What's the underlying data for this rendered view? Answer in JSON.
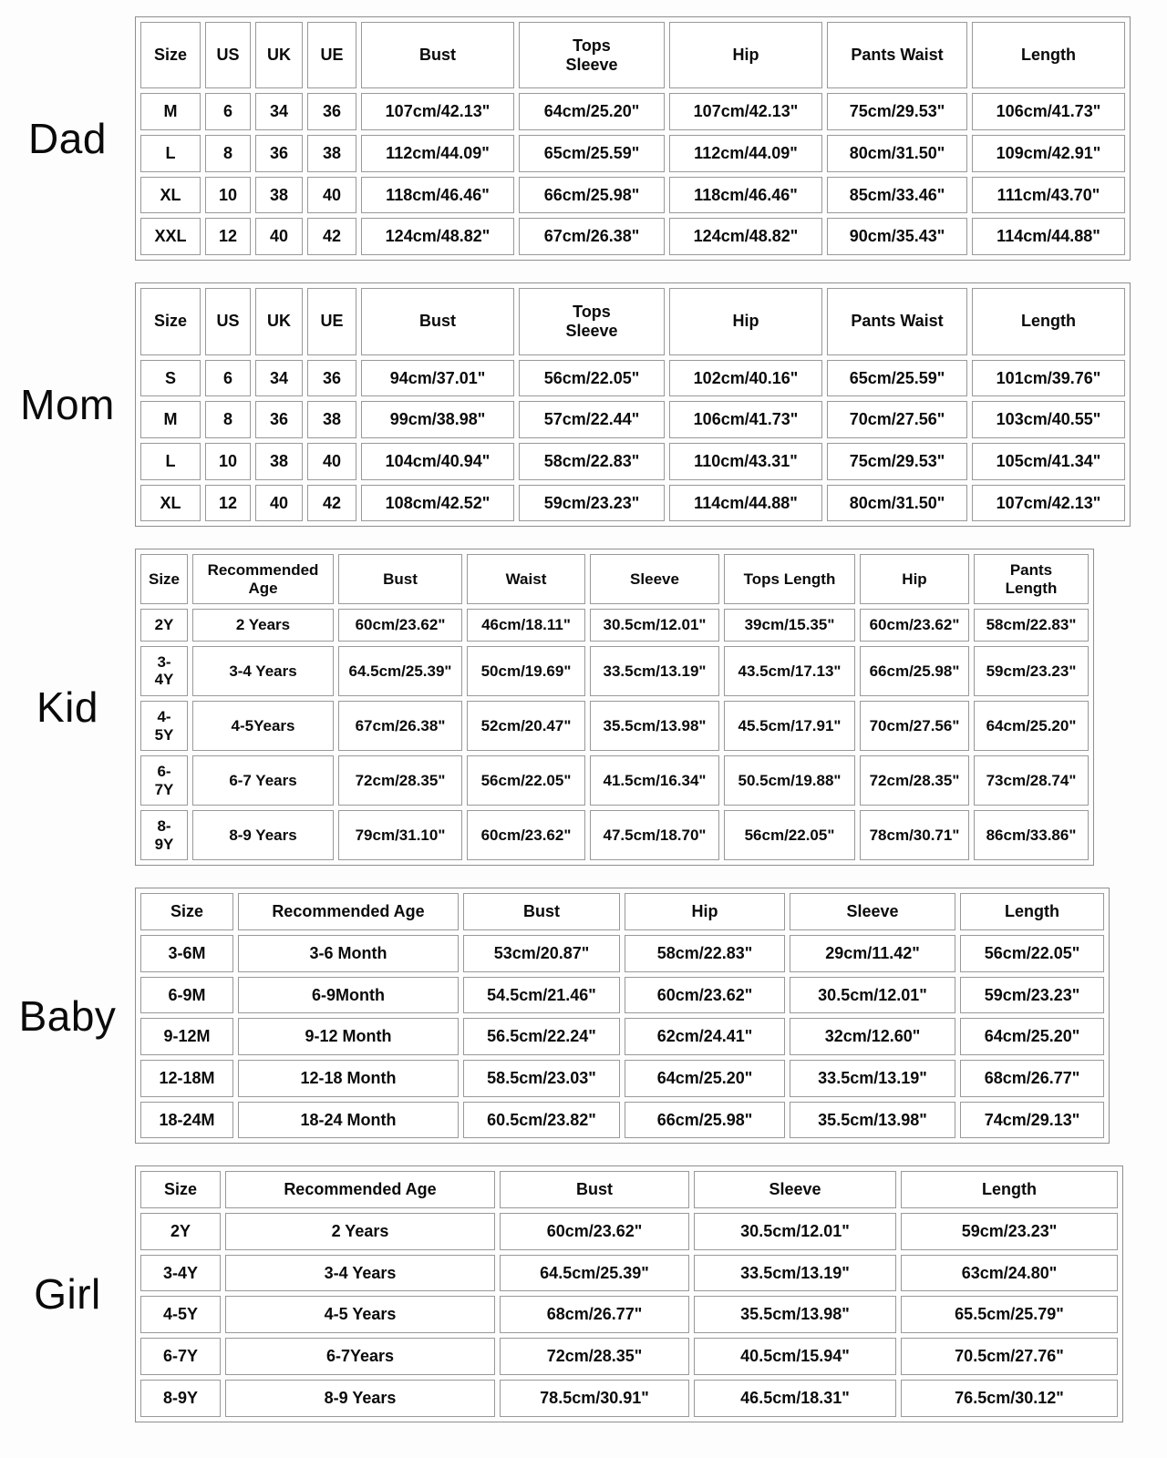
{
  "colors": {
    "page_background": "#fdfdfd",
    "cell_background": "#ffffff",
    "table_border": "#999999",
    "text": "#0a0a0a"
  },
  "sections": {
    "dad": {
      "label": "Dad",
      "table": {
        "headers": [
          "Size",
          "US",
          "UK",
          "UE",
          "Bust",
          "Tops\nSleeve",
          "Hip",
          "Pants Waist",
          "Length"
        ],
        "rows": [
          [
            "M",
            "6",
            "34",
            "36",
            "107cm/42.13\"",
            "64cm/25.20\"",
            "107cm/42.13\"",
            "75cm/29.53\"",
            "106cm/41.73\""
          ],
          [
            "L",
            "8",
            "36",
            "38",
            "112cm/44.09\"",
            "65cm/25.59\"",
            "112cm/44.09\"",
            "80cm/31.50\"",
            "109cm/42.91\""
          ],
          [
            "XL",
            "10",
            "38",
            "40",
            "118cm/46.46\"",
            "66cm/25.98\"",
            "118cm/46.46\"",
            "85cm/33.46\"",
            "111cm/43.70\""
          ],
          [
            "XXL",
            "12",
            "40",
            "42",
            "124cm/48.82\"",
            "67cm/26.38\"",
            "124cm/48.82\"",
            "90cm/35.43\"",
            "114cm/44.88\""
          ]
        ]
      }
    },
    "mom": {
      "label": "Mom",
      "table": {
        "headers": [
          "Size",
          "US",
          "UK",
          "UE",
          "Bust",
          "Tops\nSleeve",
          "Hip",
          "Pants Waist",
          "Length"
        ],
        "rows": [
          [
            "S",
            "6",
            "34",
            "36",
            "94cm/37.01\"",
            "56cm/22.05\"",
            "102cm/40.16\"",
            "65cm/25.59\"",
            "101cm/39.76\""
          ],
          [
            "M",
            "8",
            "36",
            "38",
            "99cm/38.98\"",
            "57cm/22.44\"",
            "106cm/41.73\"",
            "70cm/27.56\"",
            "103cm/40.55\""
          ],
          [
            "L",
            "10",
            "38",
            "40",
            "104cm/40.94\"",
            "58cm/22.83\"",
            "110cm/43.31\"",
            "75cm/29.53\"",
            "105cm/41.34\""
          ],
          [
            "XL",
            "12",
            "40",
            "42",
            "108cm/42.52\"",
            "59cm/23.23\"",
            "114cm/44.88\"",
            "80cm/31.50\"",
            "107cm/42.13\""
          ]
        ]
      }
    },
    "kid": {
      "label": "Kid",
      "table": {
        "headers": [
          "Size",
          "Recommended\nAge",
          "Bust",
          "Waist",
          "Sleeve",
          "Tops Length",
          "Hip",
          "Pants\nLength"
        ],
        "rows": [
          [
            "2Y",
            "2 Years",
            "60cm/23.62\"",
            "46cm/18.11\"",
            "30.5cm/12.01\"",
            "39cm/15.35\"",
            "60cm/23.62\"",
            "58cm/22.83\""
          ],
          [
            "3-\n4Y",
            "3-4 Years",
            "64.5cm/25.39\"",
            "50cm/19.69\"",
            "33.5cm/13.19\"",
            "43.5cm/17.13\"",
            "66cm/25.98\"",
            "59cm/23.23\""
          ],
          [
            "4-\n5Y",
            "4-5Years",
            "67cm/26.38\"",
            "52cm/20.47\"",
            "35.5cm/13.98\"",
            "45.5cm/17.91\"",
            "70cm/27.56\"",
            "64cm/25.20\""
          ],
          [
            "6-\n7Y",
            "6-7 Years",
            "72cm/28.35\"",
            "56cm/22.05\"",
            "41.5cm/16.34\"",
            "50.5cm/19.88\"",
            "72cm/28.35\"",
            "73cm/28.74\""
          ],
          [
            "8-\n9Y",
            "8-9 Years",
            "79cm/31.10\"",
            "60cm/23.62\"",
            "47.5cm/18.70\"",
            "56cm/22.05\"",
            "78cm/30.71\"",
            "86cm/33.86\""
          ]
        ]
      }
    },
    "baby": {
      "label": "Baby",
      "table": {
        "headers": [
          "Size",
          "Recommended Age",
          "Bust",
          "Hip",
          "Sleeve",
          "Length"
        ],
        "rows": [
          [
            "3-6M",
            "3-6 Month",
            "53cm/20.87\"",
            "58cm/22.83\"",
            "29cm/11.42\"",
            "56cm/22.05\""
          ],
          [
            "6-9M",
            "6-9Month",
            "54.5cm/21.46\"",
            "60cm/23.62\"",
            "30.5cm/12.01\"",
            "59cm/23.23\""
          ],
          [
            "9-12M",
            "9-12 Month",
            "56.5cm/22.24\"",
            "62cm/24.41\"",
            "32cm/12.60\"",
            "64cm/25.20\""
          ],
          [
            "12-18M",
            "12-18 Month",
            "58.5cm/23.03\"",
            "64cm/25.20\"",
            "33.5cm/13.19\"",
            "68cm/26.77\""
          ],
          [
            "18-24M",
            "18-24 Month",
            "60.5cm/23.82\"",
            "66cm/25.98\"",
            "35.5cm/13.98\"",
            "74cm/29.13\""
          ]
        ]
      }
    },
    "girl": {
      "label": "Girl",
      "table": {
        "headers": [
          "Size",
          "Recommended Age",
          "Bust",
          "Sleeve",
          "Length"
        ],
        "rows": [
          [
            "2Y",
            "2 Years",
            "60cm/23.62\"",
            "30.5cm/12.01\"",
            "59cm/23.23\""
          ],
          [
            "3-4Y",
            "3-4 Years",
            "64.5cm/25.39\"",
            "33.5cm/13.19\"",
            "63cm/24.80\""
          ],
          [
            "4-5Y",
            "4-5 Years",
            "68cm/26.77\"",
            "35.5cm/13.98\"",
            "65.5cm/25.79\""
          ],
          [
            "6-7Y",
            "6-7Years",
            "72cm/28.35\"",
            "40.5cm/15.94\"",
            "70.5cm/27.76\""
          ],
          [
            "8-9Y",
            "8-9 Years",
            "78.5cm/30.91\"",
            "46.5cm/18.31\"",
            "76.5cm/30.12\""
          ]
        ]
      }
    }
  }
}
